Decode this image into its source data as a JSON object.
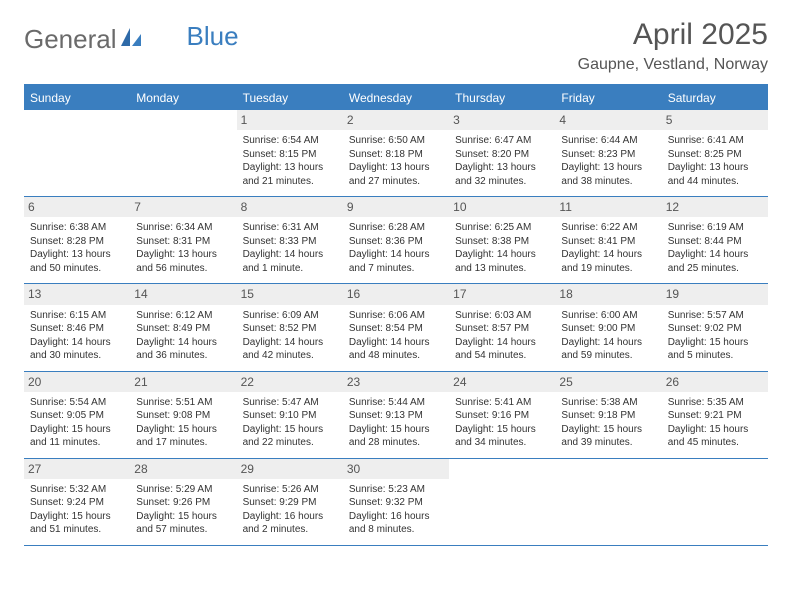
{
  "logo": {
    "text1": "General",
    "text2": "Blue"
  },
  "title": "April 2025",
  "location": "Gaupne, Vestland, Norway",
  "colors": {
    "header_bg": "#3a7ebf",
    "header_text": "#ffffff",
    "daynum_bg": "#eeeeee",
    "border": "#3a7ebf",
    "body_text": "#333333",
    "title_text": "#555555"
  },
  "weekdays": [
    "Sunday",
    "Monday",
    "Tuesday",
    "Wednesday",
    "Thursday",
    "Friday",
    "Saturday"
  ],
  "grid_leading_blanks": 2,
  "days": [
    {
      "n": "1",
      "sunrise": "Sunrise: 6:54 AM",
      "sunset": "Sunset: 8:15 PM",
      "daylight": "Daylight: 13 hours and 21 minutes."
    },
    {
      "n": "2",
      "sunrise": "Sunrise: 6:50 AM",
      "sunset": "Sunset: 8:18 PM",
      "daylight": "Daylight: 13 hours and 27 minutes."
    },
    {
      "n": "3",
      "sunrise": "Sunrise: 6:47 AM",
      "sunset": "Sunset: 8:20 PM",
      "daylight": "Daylight: 13 hours and 32 minutes."
    },
    {
      "n": "4",
      "sunrise": "Sunrise: 6:44 AM",
      "sunset": "Sunset: 8:23 PM",
      "daylight": "Daylight: 13 hours and 38 minutes."
    },
    {
      "n": "5",
      "sunrise": "Sunrise: 6:41 AM",
      "sunset": "Sunset: 8:25 PM",
      "daylight": "Daylight: 13 hours and 44 minutes."
    },
    {
      "n": "6",
      "sunrise": "Sunrise: 6:38 AM",
      "sunset": "Sunset: 8:28 PM",
      "daylight": "Daylight: 13 hours and 50 minutes."
    },
    {
      "n": "7",
      "sunrise": "Sunrise: 6:34 AM",
      "sunset": "Sunset: 8:31 PM",
      "daylight": "Daylight: 13 hours and 56 minutes."
    },
    {
      "n": "8",
      "sunrise": "Sunrise: 6:31 AM",
      "sunset": "Sunset: 8:33 PM",
      "daylight": "Daylight: 14 hours and 1 minute."
    },
    {
      "n": "9",
      "sunrise": "Sunrise: 6:28 AM",
      "sunset": "Sunset: 8:36 PM",
      "daylight": "Daylight: 14 hours and 7 minutes."
    },
    {
      "n": "10",
      "sunrise": "Sunrise: 6:25 AM",
      "sunset": "Sunset: 8:38 PM",
      "daylight": "Daylight: 14 hours and 13 minutes."
    },
    {
      "n": "11",
      "sunrise": "Sunrise: 6:22 AM",
      "sunset": "Sunset: 8:41 PM",
      "daylight": "Daylight: 14 hours and 19 minutes."
    },
    {
      "n": "12",
      "sunrise": "Sunrise: 6:19 AM",
      "sunset": "Sunset: 8:44 PM",
      "daylight": "Daylight: 14 hours and 25 minutes."
    },
    {
      "n": "13",
      "sunrise": "Sunrise: 6:15 AM",
      "sunset": "Sunset: 8:46 PM",
      "daylight": "Daylight: 14 hours and 30 minutes."
    },
    {
      "n": "14",
      "sunrise": "Sunrise: 6:12 AM",
      "sunset": "Sunset: 8:49 PM",
      "daylight": "Daylight: 14 hours and 36 minutes."
    },
    {
      "n": "15",
      "sunrise": "Sunrise: 6:09 AM",
      "sunset": "Sunset: 8:52 PM",
      "daylight": "Daylight: 14 hours and 42 minutes."
    },
    {
      "n": "16",
      "sunrise": "Sunrise: 6:06 AM",
      "sunset": "Sunset: 8:54 PM",
      "daylight": "Daylight: 14 hours and 48 minutes."
    },
    {
      "n": "17",
      "sunrise": "Sunrise: 6:03 AM",
      "sunset": "Sunset: 8:57 PM",
      "daylight": "Daylight: 14 hours and 54 minutes."
    },
    {
      "n": "18",
      "sunrise": "Sunrise: 6:00 AM",
      "sunset": "Sunset: 9:00 PM",
      "daylight": "Daylight: 14 hours and 59 minutes."
    },
    {
      "n": "19",
      "sunrise": "Sunrise: 5:57 AM",
      "sunset": "Sunset: 9:02 PM",
      "daylight": "Daylight: 15 hours and 5 minutes."
    },
    {
      "n": "20",
      "sunrise": "Sunrise: 5:54 AM",
      "sunset": "Sunset: 9:05 PM",
      "daylight": "Daylight: 15 hours and 11 minutes."
    },
    {
      "n": "21",
      "sunrise": "Sunrise: 5:51 AM",
      "sunset": "Sunset: 9:08 PM",
      "daylight": "Daylight: 15 hours and 17 minutes."
    },
    {
      "n": "22",
      "sunrise": "Sunrise: 5:47 AM",
      "sunset": "Sunset: 9:10 PM",
      "daylight": "Daylight: 15 hours and 22 minutes."
    },
    {
      "n": "23",
      "sunrise": "Sunrise: 5:44 AM",
      "sunset": "Sunset: 9:13 PM",
      "daylight": "Daylight: 15 hours and 28 minutes."
    },
    {
      "n": "24",
      "sunrise": "Sunrise: 5:41 AM",
      "sunset": "Sunset: 9:16 PM",
      "daylight": "Daylight: 15 hours and 34 minutes."
    },
    {
      "n": "25",
      "sunrise": "Sunrise: 5:38 AM",
      "sunset": "Sunset: 9:18 PM",
      "daylight": "Daylight: 15 hours and 39 minutes."
    },
    {
      "n": "26",
      "sunrise": "Sunrise: 5:35 AM",
      "sunset": "Sunset: 9:21 PM",
      "daylight": "Daylight: 15 hours and 45 minutes."
    },
    {
      "n": "27",
      "sunrise": "Sunrise: 5:32 AM",
      "sunset": "Sunset: 9:24 PM",
      "daylight": "Daylight: 15 hours and 51 minutes."
    },
    {
      "n": "28",
      "sunrise": "Sunrise: 5:29 AM",
      "sunset": "Sunset: 9:26 PM",
      "daylight": "Daylight: 15 hours and 57 minutes."
    },
    {
      "n": "29",
      "sunrise": "Sunrise: 5:26 AM",
      "sunset": "Sunset: 9:29 PM",
      "daylight": "Daylight: 16 hours and 2 minutes."
    },
    {
      "n": "30",
      "sunrise": "Sunrise: 5:23 AM",
      "sunset": "Sunset: 9:32 PM",
      "daylight": "Daylight: 16 hours and 8 minutes."
    }
  ],
  "grid_trailing_blanks": 3
}
